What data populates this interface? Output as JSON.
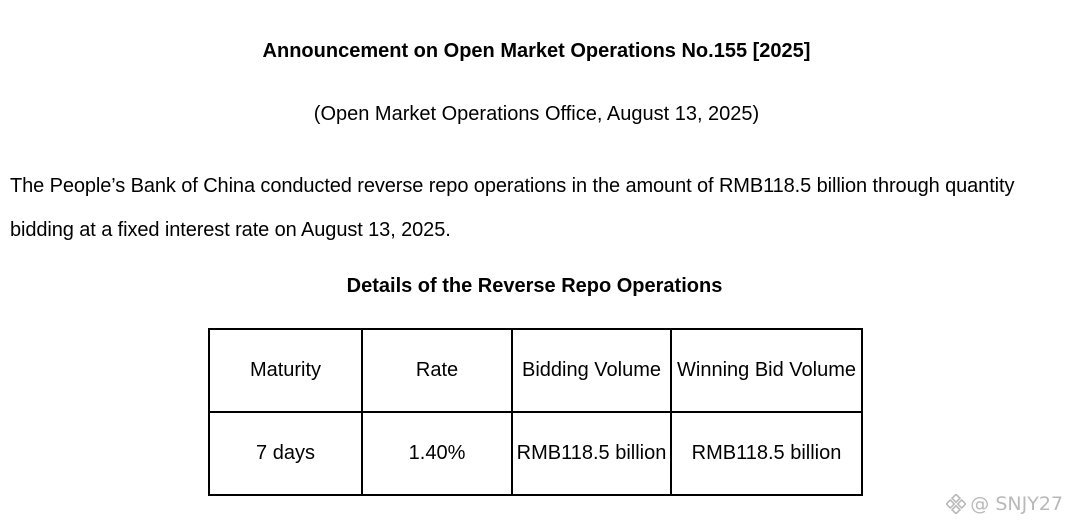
{
  "document": {
    "title": "Announcement on Open Market Operations No.155 [2025]",
    "subtitle": "(Open Market Operations Office, August 13, 2025)",
    "body_line_1": "The People’s Bank of China conducted reverse repo operations in the amount of RMB118.5 billion through quantity",
    "body_line_2": "bidding at a fixed interest rate on August 13, 2025.",
    "table_title": "Details of the Reverse Repo Operations"
  },
  "table": {
    "headers": [
      "Maturity",
      "Rate",
      "Bidding Volume",
      "Winning Bid Volume"
    ],
    "rows": [
      [
        "7 days",
        "1.40%",
        "RMB118.5 billion",
        "RMB118.5 billion"
      ]
    ]
  },
  "watermark": {
    "text": "@ SNJY27",
    "icon": "logo-icon"
  },
  "colors": {
    "text": "#000000",
    "border": "#000000",
    "watermark": "#b9b9b9"
  }
}
